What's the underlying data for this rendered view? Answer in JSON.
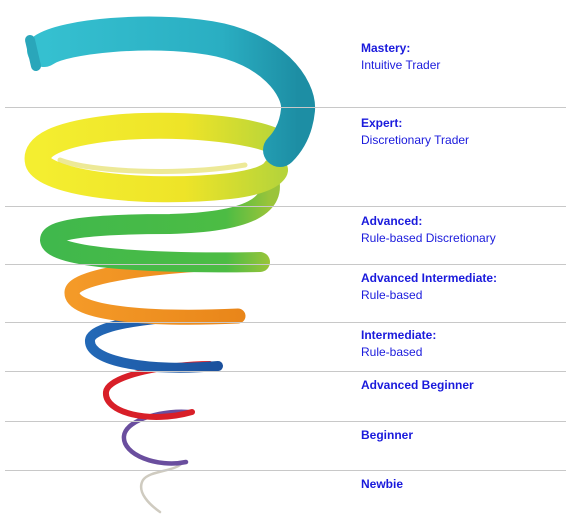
{
  "levels": [
    {
      "name": "Mastery:",
      "description": "Intuitive Trader",
      "color": "#2bb0c4"
    },
    {
      "name": "Expert:",
      "description": "Discretionary Trader",
      "color": "#e8e020"
    },
    {
      "name": "Advanced:",
      "description": "Rule-based Discretionary",
      "color": "#3cb54a"
    },
    {
      "name": "Advanced Intermediate:",
      "description": "Rule-based",
      "color": "#f39220"
    },
    {
      "name": "Intermediate:",
      "description": "Rule-based",
      "color": "#2060b0"
    },
    {
      "name": "Advanced Beginner",
      "description": "",
      "color": "#d8202a"
    },
    {
      "name": "Beginner",
      "description": "",
      "color": "#7050a0"
    },
    {
      "name": "Newbie",
      "description": "",
      "color": "#c8c4b8"
    }
  ],
  "label_color": "#1a1adc"
}
